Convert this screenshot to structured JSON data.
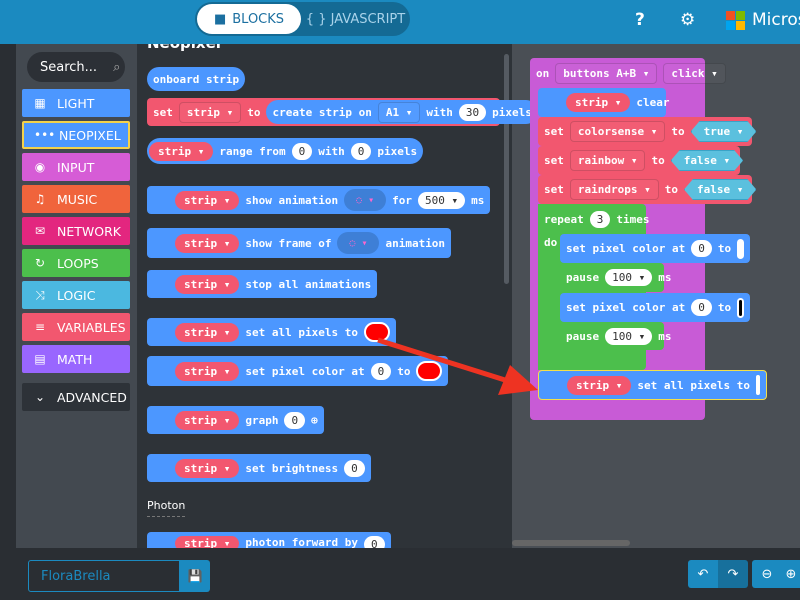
{
  "header": {
    "tab_blocks": "BLOCKS",
    "tab_javascript": "{ } JAVASCRIPT",
    "brand": "Microsoft",
    "colors": {
      "header": "#1b8ac0"
    }
  },
  "toolbox": {
    "search_placeholder": "Search...",
    "categories": [
      {
        "label": "LIGHT",
        "icon": "grid-icon",
        "color": "#4c97ff"
      },
      {
        "label": "NEOPIXEL",
        "icon": "dots-icon",
        "color": "#4c97ff",
        "selected": true
      },
      {
        "label": "INPUT",
        "icon": "target-icon",
        "color": "#d65cd6"
      },
      {
        "label": "MUSIC",
        "icon": "headphones-icon",
        "color": "#f0643c"
      },
      {
        "label": "NETWORK",
        "icon": "chat-icon",
        "color": "#e3267f"
      },
      {
        "label": "LOOPS",
        "icon": "loop-icon",
        "color": "#4cbf4c"
      },
      {
        "label": "LOGIC",
        "icon": "shuffle-icon",
        "color": "#4bb8e0"
      },
      {
        "label": "VARIABLES",
        "icon": "list-icon",
        "color": "#f2576f"
      },
      {
        "label": "MATH",
        "icon": "calculator-icon",
        "color": "#9966ff"
      },
      {
        "label": "ADVANCED",
        "icon": "chevron-down-icon",
        "color": "#2d3238"
      }
    ]
  },
  "flyout": {
    "heading": "Neopixel",
    "section_photon": "Photon",
    "w": {
      "onboard": "onboard strip",
      "set": "set",
      "strip": "strip ▾",
      "to": "to",
      "create": "create strip on",
      "a1": "A1 ▾",
      "with": "with",
      "n30": "30",
      "pixels": "pixels",
      "range": "range from",
      "zero": "0",
      "show_anim": "show animation",
      "for": "for",
      "ms500": "500 ▾",
      "ms": "ms",
      "show_frame": "show frame of",
      "animation": "animation",
      "stop": "stop all animations",
      "set_all": "set all pixels to",
      "set_pixel": "set pixel color at",
      "graph": "graph",
      "brightness": "set brightness",
      "photon": "photon forward by"
    }
  },
  "workspace": {
    "on": "on",
    "buttons": "buttons A+B ▾",
    "click": "click ▾",
    "strip": "strip ▾",
    "clear": "clear",
    "set": "set",
    "to": "to",
    "colorsense": "colorsense ▾",
    "true": "true ▾",
    "rainbow": "rainbow ▾",
    "false": "false ▾",
    "raindrops": "raindrops ▾",
    "repeat": "repeat",
    "times_n": "3",
    "times": "times",
    "do": "do",
    "set_pixel": "set pixel color at",
    "zero": "0",
    "pause": "pause",
    "p100": "100 ▾",
    "ms": "ms",
    "set_all": "set all pixels to"
  },
  "footer": {
    "project_name": "FloraBrella"
  }
}
